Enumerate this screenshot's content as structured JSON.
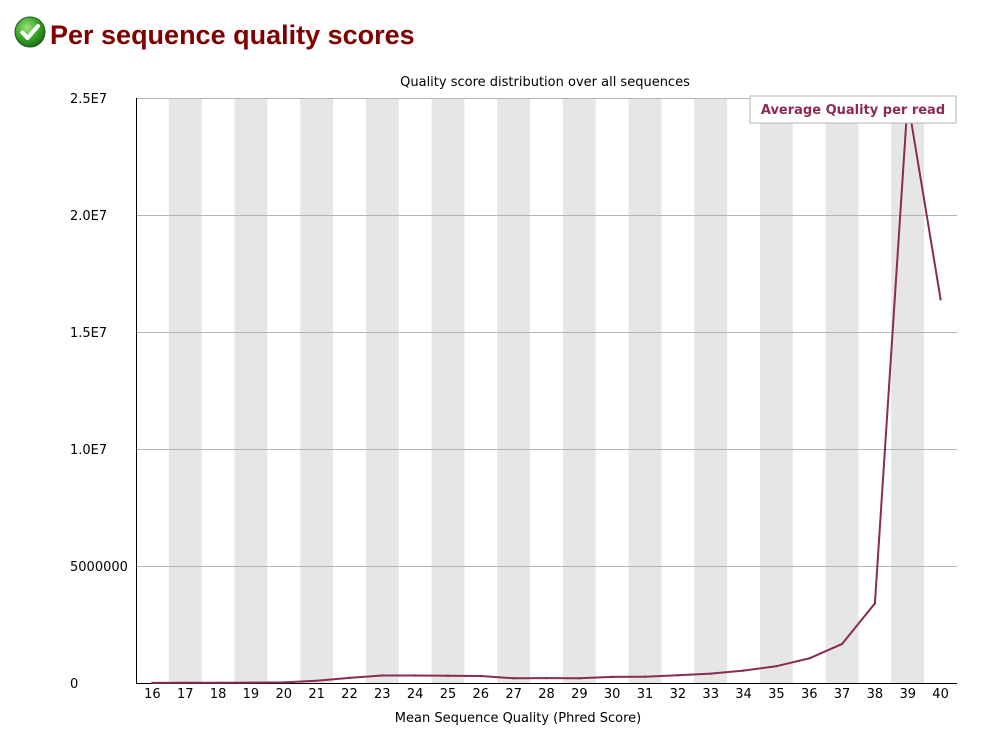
{
  "header": {
    "title": "Per sequence quality scores",
    "status_icon": "pass-check-icon",
    "status_color": "#2e9e1e"
  },
  "chart_data": {
    "type": "line",
    "title": "Quality score distribution over all sequences",
    "xlabel": "Mean Sequence Quality (Phred Score)",
    "ylabel": "",
    "categories": [
      "16",
      "17",
      "18",
      "19",
      "20",
      "21",
      "22",
      "23",
      "24",
      "25",
      "26",
      "27",
      "28",
      "29",
      "30",
      "31",
      "32",
      "33",
      "34",
      "35",
      "36",
      "37",
      "38",
      "39",
      "40"
    ],
    "series": [
      {
        "name": "Average Quality per read",
        "color": "#8b2a55",
        "values": [
          5000,
          8000,
          12000,
          16000,
          25000,
          100000,
          220000,
          320000,
          320000,
          310000,
          300000,
          200000,
          210000,
          200000,
          260000,
          270000,
          330000,
          400000,
          530000,
          720000,
          1050000,
          1670000,
          3400000,
          24900000,
          16400000
        ]
      }
    ],
    "ylim": [
      0,
      25000000
    ],
    "ytick_labels": [
      "0",
      "5000000",
      "1.0E7",
      "1.5E7",
      "2.0E7",
      "2.5E7"
    ],
    "ytick_values": [
      0,
      5000000,
      10000000,
      15000000,
      20000000,
      25000000
    ],
    "grid": true,
    "alternating_column_shading": true,
    "shade_color": "#e6e6e6",
    "legend_position": "top-right"
  }
}
